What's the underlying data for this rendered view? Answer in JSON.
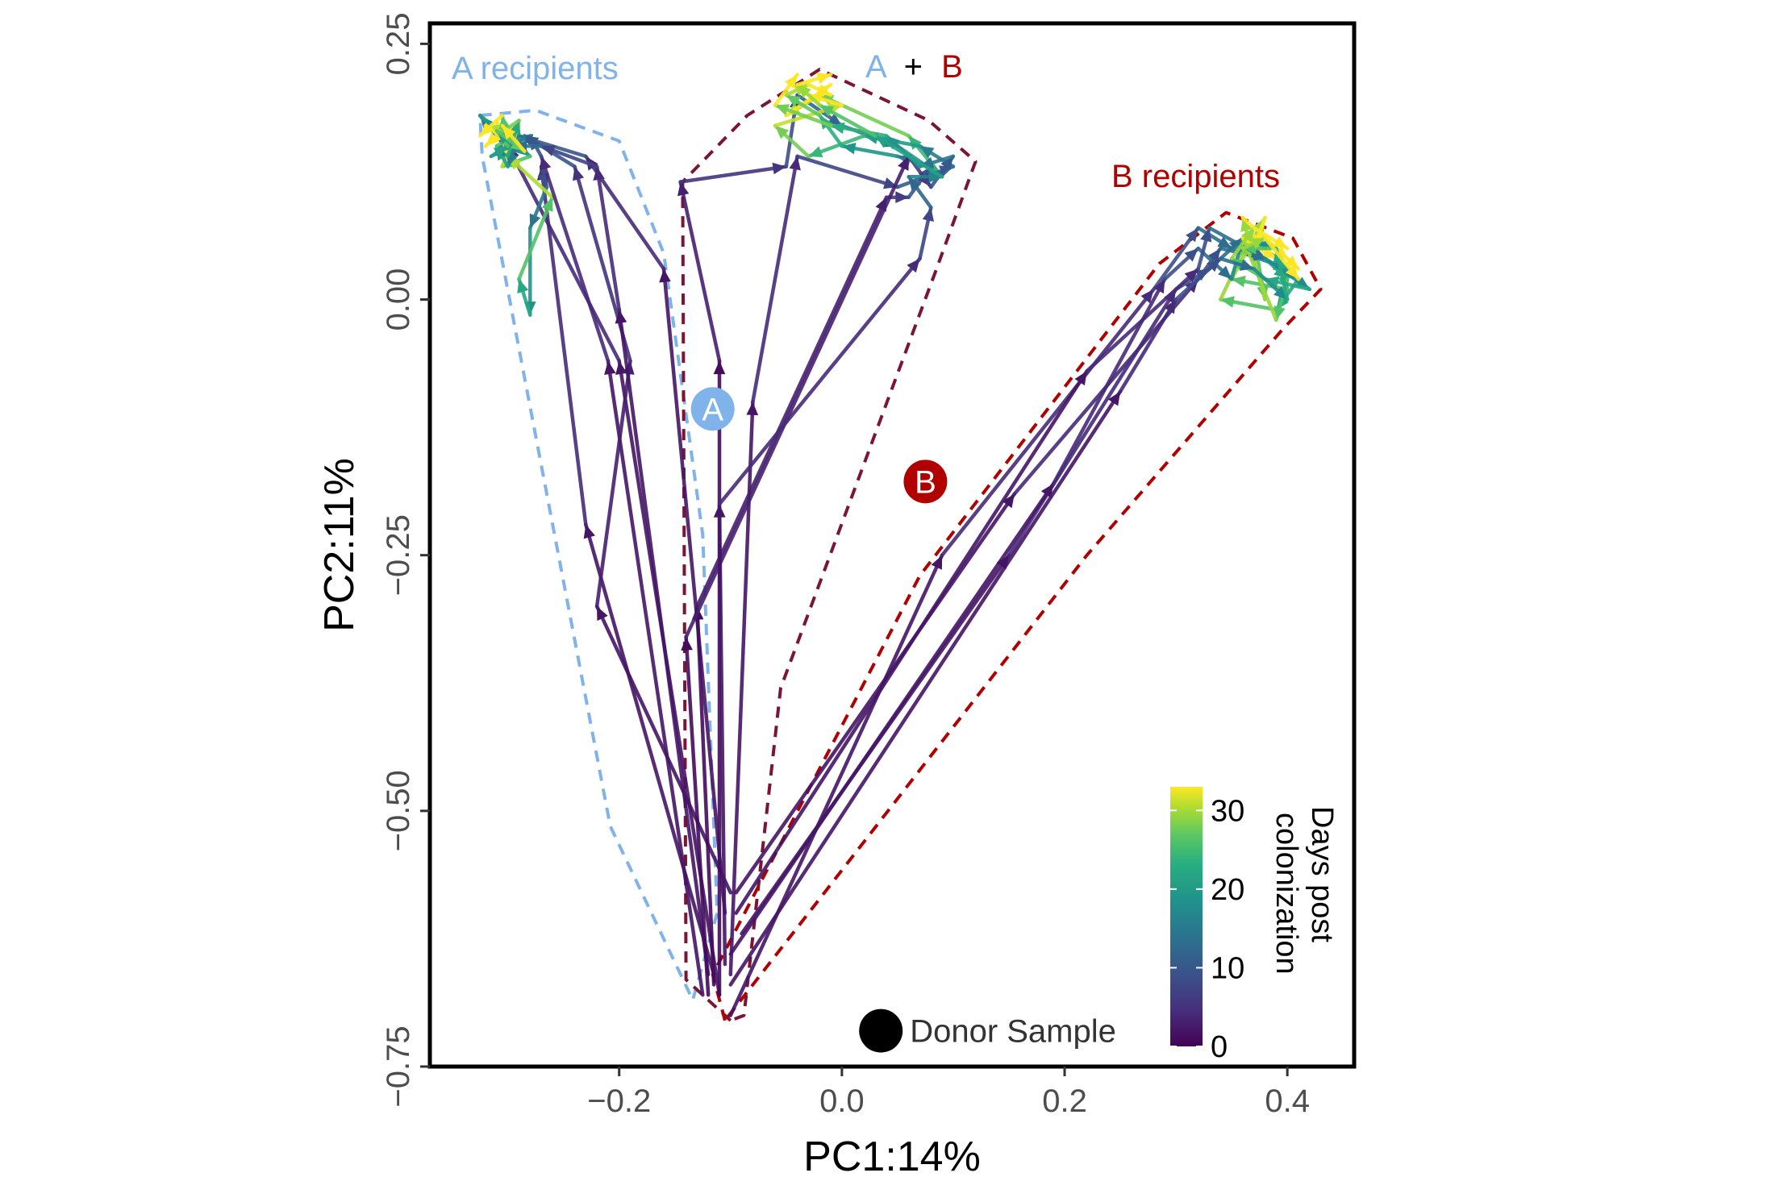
{
  "chart_data": {
    "type": "scatter",
    "title": "",
    "xlabel": "PC1:14%",
    "ylabel": "PC2:11%",
    "xlim": [
      -0.37,
      0.46
    ],
    "ylim": [
      -0.75,
      0.27
    ],
    "xticks": [
      -0.2,
      0.0,
      0.2,
      0.4
    ],
    "yticks": [
      0.25,
      0.0,
      -0.25,
      -0.5,
      -0.75
    ],
    "xtick_labels": [
      "−0.2",
      "0.0",
      "0.2",
      "0.4"
    ],
    "ytick_labels": [
      "0.25",
      "0.00",
      "−0.25",
      "−0.50",
      "−0.75"
    ],
    "grid": false,
    "colors": {
      "A": "#7fb3ea",
      "B": "#b00000",
      "AB_hull": "#7a1535",
      "plus": "#000000",
      "viridis_low": "#440154",
      "viridis_high": "#fde725"
    },
    "colorbar": {
      "title": "Days post colonization",
      "title_lines": [
        "Days post",
        "colonization"
      ],
      "min": 0,
      "max": 33,
      "ticks": [
        0,
        10,
        20,
        30
      ],
      "tick_labels": [
        "0",
        "10",
        "20",
        "30"
      ],
      "placement": "bottom-right"
    },
    "group_labels": {
      "a_recipients": "A recipients",
      "b_recipients": "B recipients",
      "ab_a": "A",
      "ab_plus": "+",
      "ab_b": "B"
    },
    "annotations": {
      "marker_a": "A",
      "marker_b": "B",
      "donor_label": "Donor Sample"
    },
    "markers": [
      {
        "label": "A",
        "x": -0.116,
        "y": -0.107
      },
      {
        "label": "B",
        "x": 0.075,
        "y": -0.178
      }
    ],
    "donor_sample": {
      "x": 0.035,
      "y": -0.715
    },
    "hulls": [
      {
        "group": "A recipients",
        "color": "#7fb3ea",
        "points": [
          [
            -0.112,
            -0.6
          ],
          [
            -0.134,
            -0.685
          ],
          [
            -0.208,
            -0.515
          ],
          [
            -0.323,
            0.14
          ],
          [
            -0.325,
            0.18
          ],
          [
            -0.275,
            0.185
          ],
          [
            -0.2,
            0.155
          ],
          [
            -0.16,
            0.045
          ],
          [
            -0.125,
            -0.23
          ]
        ]
      },
      {
        "group": "A + B",
        "color": "#7a1535",
        "points": [
          [
            -0.1,
            -0.705
          ],
          [
            -0.14,
            -0.665
          ],
          [
            -0.143,
            0.115
          ],
          [
            -0.085,
            0.18
          ],
          [
            -0.02,
            0.225
          ],
          [
            0.078,
            0.175
          ],
          [
            0.12,
            0.135
          ],
          [
            0.085,
            0.03
          ],
          [
            -0.055,
            -0.38
          ],
          [
            -0.088,
            -0.7
          ]
        ]
      },
      {
        "group": "B recipients",
        "color": "#b00000",
        "points": [
          [
            -0.105,
            -0.705
          ],
          [
            -0.116,
            -0.66
          ],
          [
            0.07,
            -0.27
          ],
          [
            0.285,
            0.035
          ],
          [
            0.345,
            0.085
          ],
          [
            0.405,
            0.06
          ],
          [
            0.43,
            0.01
          ],
          [
            0.395,
            -0.03
          ],
          [
            0.22,
            -0.25
          ]
        ]
      }
    ],
    "series": [
      {
        "group": "A recipients",
        "trajectory": 1,
        "points": [
          [
            -0.11,
            -0.68,
            0
          ],
          [
            -0.2,
            -0.06,
            2
          ],
          [
            -0.3,
            0.15,
            4
          ],
          [
            -0.31,
            0.16,
            9
          ],
          [
            -0.325,
            0.18,
            14
          ],
          [
            -0.28,
            0.14,
            18
          ],
          [
            -0.305,
            0.13,
            24
          ],
          [
            -0.29,
            0.17,
            29
          ],
          [
            -0.315,
            0.155,
            33
          ]
        ]
      },
      {
        "group": "A recipients",
        "trajectory": 2,
        "points": [
          [
            -0.115,
            -0.66,
            0
          ],
          [
            -0.23,
            -0.22,
            2
          ],
          [
            -0.27,
            0.13,
            4
          ],
          [
            -0.265,
            0.11,
            8
          ],
          [
            -0.28,
            0.07,
            13
          ],
          [
            -0.28,
            -0.015,
            17
          ],
          [
            -0.29,
            0.02,
            20
          ],
          [
            -0.26,
            0.1,
            24
          ],
          [
            -0.3,
            0.14,
            29
          ],
          [
            -0.31,
            0.175,
            33
          ]
        ]
      },
      {
        "group": "A recipients",
        "trajectory": 3,
        "points": [
          [
            -0.105,
            -0.6,
            0
          ],
          [
            -0.16,
            0.03,
            2
          ],
          [
            -0.23,
            0.14,
            4
          ],
          [
            -0.29,
            0.16,
            9
          ],
          [
            -0.3,
            0.13,
            14
          ],
          [
            -0.31,
            0.15,
            19
          ],
          [
            -0.295,
            0.16,
            24
          ],
          [
            -0.32,
            0.17,
            29
          ],
          [
            -0.3,
            0.155,
            33
          ]
        ]
      },
      {
        "group": "A recipients",
        "trajectory": 4,
        "points": [
          [
            -0.125,
            -0.68,
            0
          ],
          [
            -0.21,
            -0.06,
            2
          ],
          [
            -0.27,
            0.14,
            4
          ],
          [
            -0.28,
            0.16,
            9
          ],
          [
            -0.315,
            0.14,
            14
          ],
          [
            -0.3,
            0.15,
            19
          ],
          [
            -0.305,
            0.18,
            24
          ],
          [
            -0.325,
            0.16,
            33
          ]
        ]
      },
      {
        "group": "A recipients",
        "trajectory": 5,
        "points": [
          [
            -0.1,
            -0.58,
            0
          ],
          [
            -0.22,
            -0.3,
            2
          ],
          [
            -0.19,
            -0.06,
            3
          ],
          [
            -0.24,
            0.13,
            5
          ],
          [
            -0.285,
            0.16,
            9
          ],
          [
            -0.3,
            0.14,
            14
          ],
          [
            -0.29,
            0.175,
            20
          ],
          [
            -0.31,
            0.16,
            26
          ],
          [
            -0.32,
            0.15,
            33
          ]
        ]
      },
      {
        "group": "A recipients",
        "trajectory": 6,
        "points": [
          [
            -0.12,
            -0.66,
            0
          ],
          [
            -0.2,
            -0.01,
            2
          ],
          [
            -0.22,
            0.13,
            4
          ],
          [
            -0.27,
            0.15,
            7
          ],
          [
            -0.295,
            0.15,
            12
          ],
          [
            -0.31,
            0.165,
            18
          ],
          [
            -0.285,
            0.145,
            25
          ],
          [
            -0.305,
            0.17,
            33
          ]
        ]
      },
      {
        "group": "A + B",
        "trajectory": 7,
        "points": [
          [
            -0.11,
            -0.68,
            0
          ],
          [
            -0.11,
            -0.06,
            1
          ],
          [
            -0.145,
            0.115,
            3
          ],
          [
            -0.05,
            0.13,
            5
          ],
          [
            -0.04,
            0.2,
            8
          ],
          [
            0.0,
            0.17,
            11
          ],
          [
            0.05,
            0.15,
            14
          ],
          [
            0.09,
            0.12,
            18
          ],
          [
            0.06,
            0.16,
            22
          ],
          [
            -0.02,
            0.2,
            26
          ],
          [
            -0.05,
            0.18,
            30
          ],
          [
            -0.01,
            0.21,
            33
          ]
        ]
      },
      {
        "group": "A + B",
        "trajectory": 8,
        "points": [
          [
            -0.1,
            -0.66,
            0
          ],
          [
            -0.08,
            -0.1,
            2
          ],
          [
            -0.04,
            0.14,
            4
          ],
          [
            0.05,
            0.11,
            7
          ],
          [
            0.1,
            0.13,
            10
          ],
          [
            0.07,
            0.15,
            14
          ],
          [
            0.02,
            0.16,
            18
          ],
          [
            -0.03,
            0.14,
            22
          ],
          [
            -0.06,
            0.17,
            26
          ],
          [
            0.0,
            0.19,
            30
          ],
          [
            -0.03,
            0.2,
            33
          ]
        ]
      },
      {
        "group": "A + B",
        "trajectory": 9,
        "points": [
          [
            -0.115,
            -0.67,
            0
          ],
          [
            -0.13,
            -0.3,
            1
          ],
          [
            0.04,
            0.1,
            3
          ],
          [
            0.06,
            0.1,
            6
          ],
          [
            0.08,
            0.13,
            9
          ],
          [
            0.05,
            0.14,
            13
          ],
          [
            0.0,
            0.15,
            17
          ],
          [
            -0.02,
            0.18,
            21
          ],
          [
            -0.05,
            0.2,
            25
          ],
          [
            -0.03,
            0.21,
            29
          ],
          [
            -0.01,
            0.2,
            33
          ]
        ]
      },
      {
        "group": "A + B",
        "trajectory": 10,
        "points": [
          [
            -0.12,
            -0.68,
            0
          ],
          [
            -0.14,
            -0.33,
            1
          ],
          [
            0.06,
            0.14,
            3
          ],
          [
            0.08,
            0.11,
            6
          ],
          [
            0.1,
            0.14,
            9
          ],
          [
            0.07,
            0.13,
            13
          ],
          [
            0.04,
            0.16,
            17
          ],
          [
            -0.01,
            0.17,
            21
          ],
          [
            -0.06,
            0.19,
            26
          ],
          [
            -0.04,
            0.22,
            33
          ]
        ]
      },
      {
        "group": "A + B",
        "trajectory": 11,
        "points": [
          [
            -0.105,
            -0.65,
            0
          ],
          [
            -0.11,
            -0.2,
            2
          ],
          [
            0.07,
            0.04,
            4
          ],
          [
            0.08,
            0.09,
            7
          ],
          [
            0.06,
            0.12,
            11
          ],
          [
            0.09,
            0.12,
            15
          ],
          [
            0.03,
            0.16,
            19
          ],
          [
            -0.02,
            0.19,
            24
          ],
          [
            -0.04,
            0.21,
            28
          ],
          [
            -0.01,
            0.22,
            33
          ]
        ]
      },
      {
        "group": "B recipients",
        "trajectory": 12,
        "points": [
          [
            -0.1,
            -0.7,
            0
          ],
          [
            0.09,
            -0.25,
            2
          ],
          [
            0.28,
            0.01,
            4
          ],
          [
            0.32,
            0.07,
            8
          ],
          [
            0.35,
            0.05,
            12
          ],
          [
            0.4,
            0.03,
            16
          ],
          [
            0.37,
            0.06,
            20
          ],
          [
            0.38,
            0.0,
            24
          ],
          [
            0.36,
            0.08,
            28
          ],
          [
            0.4,
            0.04,
            33
          ]
        ]
      },
      {
        "group": "B recipients",
        "trajectory": 13,
        "points": [
          [
            -0.095,
            -0.58,
            0
          ],
          [
            0.155,
            -0.19,
            2
          ],
          [
            0.32,
            0.02,
            4
          ],
          [
            0.34,
            0.05,
            8
          ],
          [
            0.38,
            0.04,
            12
          ],
          [
            0.41,
            0.02,
            16
          ],
          [
            0.39,
            -0.01,
            20
          ],
          [
            0.34,
            0.0,
            24
          ],
          [
            0.37,
            0.07,
            28
          ],
          [
            0.41,
            0.03,
            33
          ]
        ]
      },
      {
        "group": "B recipients",
        "trajectory": 14,
        "points": [
          [
            -0.09,
            -0.62,
            0
          ],
          [
            0.15,
            -0.25,
            2
          ],
          [
            0.3,
            0.01,
            4
          ],
          [
            0.33,
            0.03,
            8
          ],
          [
            0.36,
            0.06,
            12
          ],
          [
            0.39,
            0.05,
            16
          ],
          [
            0.4,
            0.01,
            20
          ],
          [
            0.35,
            0.02,
            24
          ],
          [
            0.38,
            0.08,
            28
          ],
          [
            0.37,
            0.05,
            33
          ]
        ]
      },
      {
        "group": "B recipients",
        "trajectory": 15,
        "points": [
          [
            -0.1,
            -0.64,
            0
          ],
          [
            0.19,
            -0.18,
            2
          ],
          [
            0.29,
            0.02,
            4
          ],
          [
            0.32,
            0.05,
            8
          ],
          [
            0.35,
            0.02,
            12
          ],
          [
            0.36,
            0.06,
            16
          ],
          [
            0.4,
            0.02,
            20
          ],
          [
            0.39,
            -0.02,
            24
          ],
          [
            0.36,
            0.06,
            28
          ],
          [
            0.39,
            0.04,
            33
          ]
        ]
      },
      {
        "group": "B recipients",
        "trajectory": 16,
        "points": [
          [
            -0.095,
            -0.6,
            0
          ],
          [
            0.22,
            -0.07,
            2
          ],
          [
            0.32,
            0.03,
            4
          ],
          [
            0.33,
            0.07,
            8
          ],
          [
            0.38,
            0.04,
            12
          ],
          [
            0.42,
            0.01,
            16
          ],
          [
            0.38,
            0.02,
            20
          ],
          [
            0.35,
            0.04,
            24
          ],
          [
            0.37,
            0.07,
            28
          ],
          [
            0.4,
            0.05,
            33
          ]
        ]
      },
      {
        "group": "B recipients",
        "trajectory": 17,
        "points": [
          [
            -0.1,
            -0.67,
            0
          ],
          [
            0.25,
            -0.09,
            2
          ],
          [
            0.3,
            0.0,
            4
          ],
          [
            0.34,
            0.04,
            8
          ],
          [
            0.37,
            0.03,
            12
          ],
          [
            0.4,
            0.0,
            16
          ],
          [
            0.39,
            0.05,
            20
          ],
          [
            0.36,
            0.05,
            24
          ],
          [
            0.38,
            0.06,
            28
          ],
          [
            0.41,
            0.02,
            33
          ]
        ]
      }
    ]
  }
}
